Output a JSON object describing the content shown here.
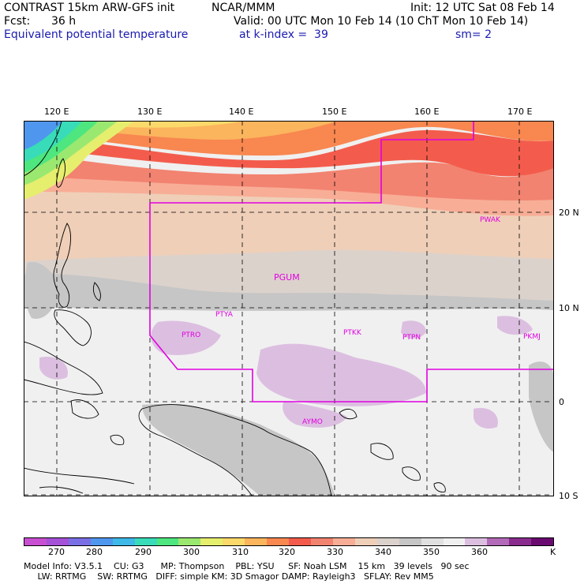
{
  "header": {
    "model": "CONTRAST 15km ARW-GFS init",
    "org": "NCAR/MMM",
    "init": "Init: 12 UTC Sat 08 Feb 14",
    "fcst_label": "Fcst:",
    "fcst_value": "36 h",
    "valid": "Valid: 00 UTC Mon 10 Feb 14 (10 ChT Mon 10 Feb 14)",
    "field": "Equivalent potential temperature",
    "level": "at k-index =  39",
    "smooth": "sm= 2"
  },
  "map": {
    "lon_labels": [
      "120 E",
      "130 E",
      "140 E",
      "150 E",
      "160 E",
      "170 E"
    ],
    "lat_labels": [
      "20 N",
      "10 N",
      "0",
      "10 S"
    ],
    "stations": [
      "PWAK",
      "PGUM",
      "PTYA",
      "PTRO",
      "PTKK",
      "PTPN",
      "PKMJ",
      "AYMO"
    ],
    "boundary_color": "#e000e0"
  },
  "colorbar": {
    "colors": [
      "#c84fd1",
      "#a552d8",
      "#7b6fe6",
      "#4f97ee",
      "#3fb9e8",
      "#38dcb8",
      "#4ee67f",
      "#9be870",
      "#e6ee6e",
      "#fbd96a",
      "#fbb55d",
      "#f88750",
      "#f35c4c",
      "#f28370",
      "#f8ad96",
      "#efcfb8",
      "#dcd2cc",
      "#c6c6c6",
      "#e0e0e0",
      "#f0f0f0",
      "#dcbfe0",
      "#b36ab8",
      "#8a2c8e",
      "#6a0a70"
    ],
    "labels": [
      "270",
      "280",
      "290",
      "300",
      "310",
      "320",
      "330",
      "340",
      "350",
      "360",
      "K"
    ]
  },
  "model_info": {
    "line1": "Model Info: V3.5.1    CU: G3      MP: Thompson    PBL: YSU     SF: Noah LSM    15 km   39 levels   90 sec",
    "line2": "     LW: RRTMG    SW: RRTMG   DIFF: simple KM: 3D Smagor DAMP: Rayleigh3   SFLAY: Rev MM5"
  }
}
